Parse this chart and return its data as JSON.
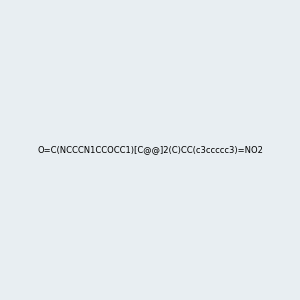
{
  "smiles": "O=C(NCCCN1CCOCC1)[C@@]2(C)CC(c3ccccc3)=NO2",
  "image_size": 300,
  "background_color": "#e8eef2",
  "title": ""
}
